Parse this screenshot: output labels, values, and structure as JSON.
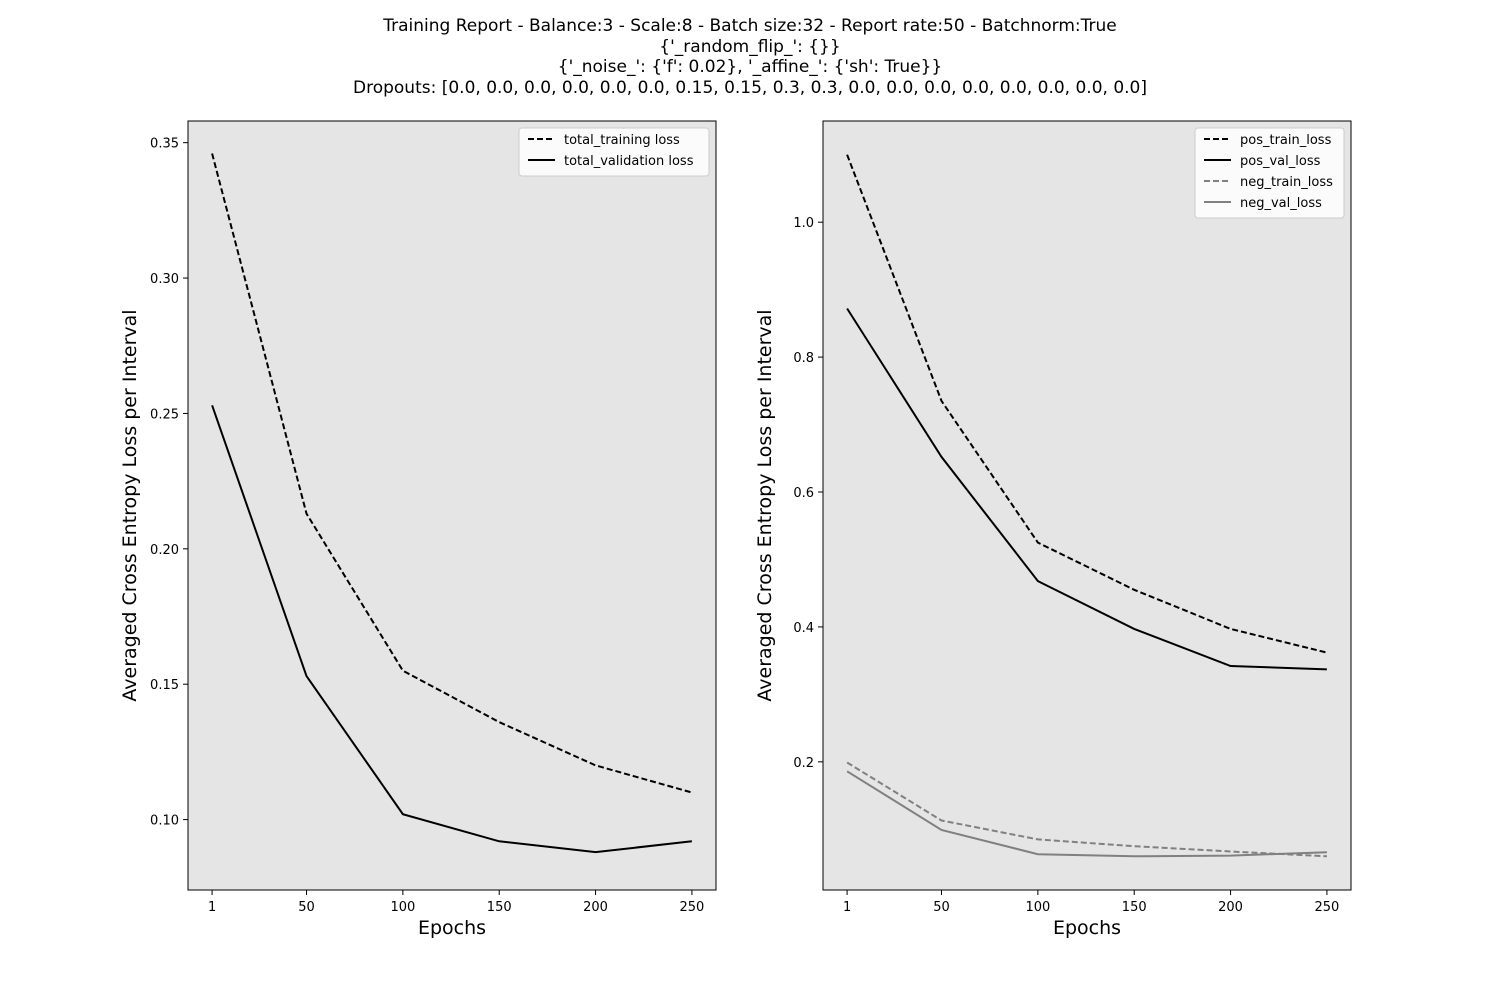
{
  "title_lines": [
    "Training Report - Balance:3 - Scale:8 - Batch size:32 - Report rate:50 - Batchnorm:True",
    "{'_random_flip_': {}}",
    "{'_noise_': {'f': 0.02}, '_affine_': {'sh': True}}",
    "Dropouts: [0.0, 0.0, 0.0, 0.0, 0.0, 0.0, 0.15, 0.15, 0.3, 0.3, 0.0, 0.0, 0.0, 0.0, 0.0, 0.0, 0.0, 0.0]"
  ],
  "colors": {
    "axes_bg": "#e5e5e5",
    "black": "#000000",
    "gray": "#808080"
  },
  "chart_data": [
    {
      "type": "line",
      "xlabel": "Epochs",
      "ylabel": "Averaged Cross Entropy Loss per Interval",
      "x": [
        1,
        50,
        100,
        150,
        200,
        250
      ],
      "xticks": [
        "1",
        "50",
        "100",
        "150",
        "200",
        "250"
      ],
      "xlim": [
        -11.5,
        262.5
      ],
      "ylim": [
        0.074,
        0.358
      ],
      "yticks": [
        "0.10",
        "0.15",
        "0.20",
        "0.25",
        "0.30",
        "0.35"
      ],
      "legend_position": "top-right",
      "series": [
        {
          "name": "total_training loss",
          "color": "#000000",
          "dashed": true,
          "values": [
            0.346,
            0.213,
            0.155,
            0.136,
            0.12,
            0.11
          ]
        },
        {
          "name": "total_validation loss",
          "color": "#000000",
          "dashed": false,
          "values": [
            0.253,
            0.153,
            0.102,
            0.092,
            0.088,
            0.092
          ]
        }
      ]
    },
    {
      "type": "line",
      "xlabel": "Epochs",
      "ylabel": "Averaged Cross Entropy Loss per Interval",
      "x": [
        1,
        50,
        100,
        150,
        200,
        250
      ],
      "xticks": [
        "1",
        "50",
        "100",
        "150",
        "200",
        "250"
      ],
      "xlim": [
        -11.5,
        262.5
      ],
      "ylim": [
        0.01,
        1.15
      ],
      "yticks": [
        "0.2",
        "0.4",
        "0.6",
        "0.8",
        "1.0"
      ],
      "legend_position": "top-right",
      "series": [
        {
          "name": "pos_train_loss",
          "color": "#000000",
          "dashed": true,
          "values": [
            1.1,
            0.735,
            0.525,
            0.455,
            0.397,
            0.362
          ]
        },
        {
          "name": "pos_val_loss",
          "color": "#000000",
          "dashed": false,
          "values": [
            0.872,
            0.652,
            0.468,
            0.397,
            0.342,
            0.337
          ]
        },
        {
          "name": "neg_train_loss",
          "color": "#808080",
          "dashed": true,
          "values": [
            0.199,
            0.113,
            0.085,
            0.075,
            0.067,
            0.06
          ]
        },
        {
          "name": "neg_val_loss",
          "color": "#808080",
          "dashed": false,
          "values": [
            0.186,
            0.099,
            0.063,
            0.06,
            0.061,
            0.066
          ]
        }
      ]
    }
  ]
}
